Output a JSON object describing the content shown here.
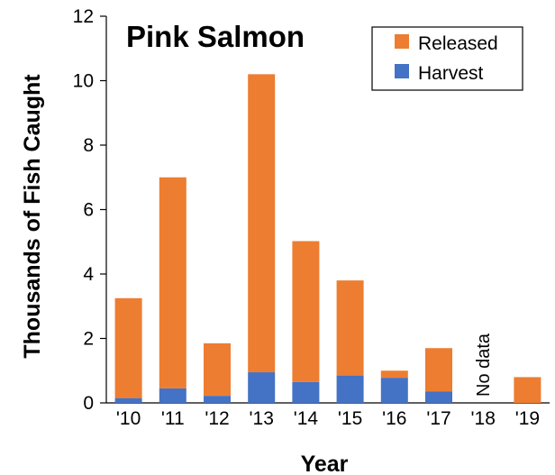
{
  "chart_data": {
    "type": "bar",
    "stacked": true,
    "title": "Pink Salmon",
    "xlabel": "Year",
    "ylabel": "Thousands of Fish Caught",
    "ylim": [
      0,
      12
    ],
    "yticks": [
      "0",
      "2",
      "4",
      "6",
      "8",
      "10",
      "12"
    ],
    "categories": [
      "'10",
      "'11",
      "'12",
      "'13",
      "'14",
      "'15",
      "'16",
      "'17",
      "'18",
      "'19"
    ],
    "series": [
      {
        "name": "Harvest",
        "color": "#4472C4",
        "values": [
          0.15,
          0.45,
          0.22,
          0.95,
          0.65,
          0.85,
          0.78,
          0.35,
          null,
          0.0
        ]
      },
      {
        "name": "Released",
        "color": "#ED7D31",
        "values": [
          3.1,
          6.55,
          1.63,
          9.25,
          4.37,
          2.95,
          0.22,
          1.35,
          null,
          0.8
        ]
      }
    ],
    "legend": {
      "position": "top-right",
      "entries": [
        "Released",
        "Harvest"
      ]
    },
    "annotations": [
      {
        "category": "'18",
        "text": "No data"
      }
    ],
    "grid": false
  }
}
